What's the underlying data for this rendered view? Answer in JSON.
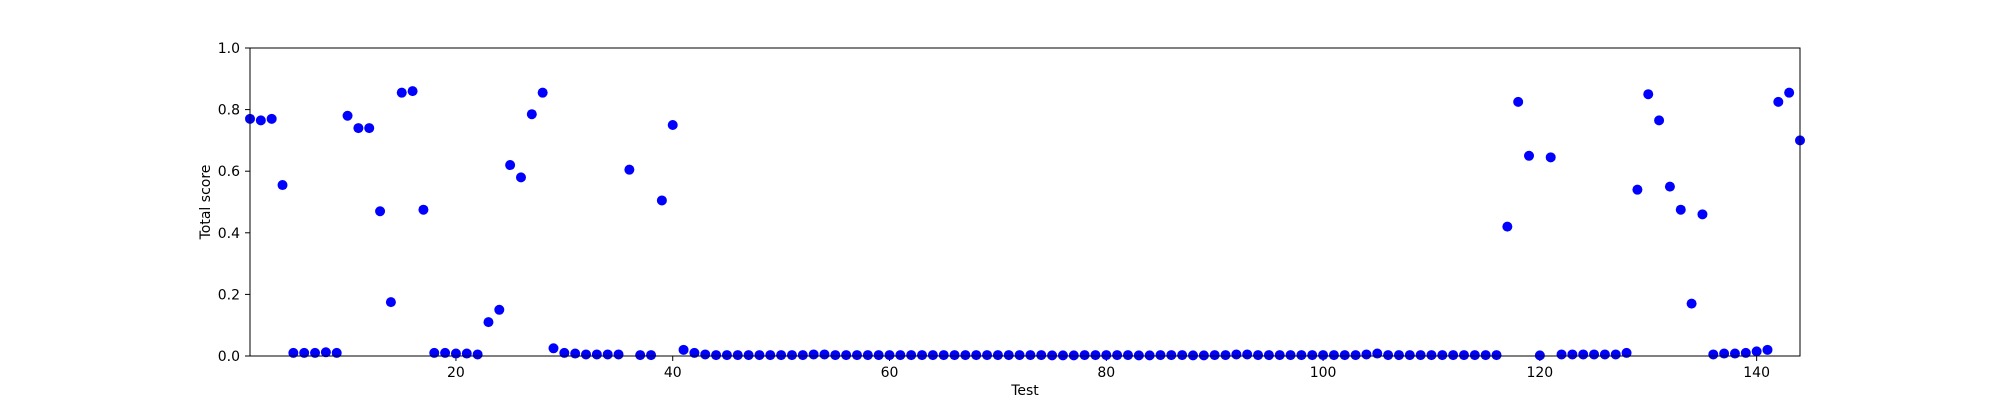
{
  "chart_data": {
    "type": "scatter",
    "title": "",
    "xlabel": "Test",
    "ylabel": "Total score",
    "xlim": [
      1,
      144
    ],
    "ylim": [
      0.0,
      1.0
    ],
    "xticks": [
      20,
      40,
      60,
      80,
      100,
      120,
      140
    ],
    "xtick_labels": [
      "20",
      "40",
      "60",
      "80",
      "100",
      "120",
      "140"
    ],
    "yticks": [
      0.0,
      0.2,
      0.4,
      0.6,
      0.8,
      1.0
    ],
    "ytick_labels": [
      "0.0",
      "0.2",
      "0.4",
      "0.6",
      "0.8",
      "1.0"
    ],
    "grid": false,
    "marker_color": "#0000ff",
    "x": [
      1,
      2,
      3,
      4,
      5,
      6,
      7,
      8,
      9,
      10,
      11,
      12,
      13,
      14,
      15,
      16,
      17,
      18,
      19,
      20,
      21,
      22,
      23,
      24,
      25,
      26,
      27,
      28,
      29,
      30,
      31,
      32,
      33,
      34,
      35,
      36,
      37,
      38,
      39,
      40,
      41,
      42,
      43,
      44,
      45,
      46,
      47,
      48,
      49,
      50,
      51,
      52,
      53,
      54,
      55,
      56,
      57,
      58,
      59,
      60,
      61,
      62,
      63,
      64,
      65,
      66,
      67,
      68,
      69,
      70,
      71,
      72,
      73,
      74,
      75,
      76,
      77,
      78,
      79,
      80,
      81,
      82,
      83,
      84,
      85,
      86,
      87,
      88,
      89,
      90,
      91,
      92,
      93,
      94,
      95,
      96,
      97,
      98,
      99,
      100,
      101,
      102,
      103,
      104,
      105,
      106,
      107,
      108,
      109,
      110,
      111,
      112,
      113,
      114,
      115,
      116,
      117,
      118,
      119,
      120,
      121,
      122,
      123,
      124,
      125,
      126,
      127,
      128,
      129,
      130,
      131,
      132,
      133,
      134,
      135,
      136,
      137,
      138,
      139,
      140,
      141,
      142,
      143,
      144
    ],
    "y": [
      0.77,
      0.765,
      0.77,
      0.555,
      0.01,
      0.01,
      0.01,
      0.012,
      0.01,
      0.78,
      0.74,
      0.74,
      0.47,
      0.175,
      0.855,
      0.86,
      0.475,
      0.01,
      0.01,
      0.008,
      0.008,
      0.005,
      0.11,
      0.15,
      0.62,
      0.58,
      0.785,
      0.855,
      0.025,
      0.01,
      0.008,
      0.005,
      0.005,
      0.005,
      0.005,
      0.605,
      0.003,
      0.003,
      0.505,
      0.75,
      0.02,
      0.01,
      0.005,
      0.003,
      0.003,
      0.003,
      0.003,
      0.003,
      0.003,
      0.003,
      0.003,
      0.003,
      0.005,
      0.005,
      0.003,
      0.003,
      0.003,
      0.003,
      0.003,
      0.003,
      0.003,
      0.003,
      0.003,
      0.003,
      0.003,
      0.003,
      0.003,
      0.003,
      0.003,
      0.003,
      0.003,
      0.003,
      0.003,
      0.003,
      0.002,
      0.002,
      0.002,
      0.003,
      0.003,
      0.003,
      0.003,
      0.003,
      0.002,
      0.002,
      0.003,
      0.003,
      0.003,
      0.002,
      0.002,
      0.003,
      0.003,
      0.005,
      0.005,
      0.003,
      0.003,
      0.003,
      0.003,
      0.003,
      0.003,
      0.003,
      0.003,
      0.003,
      0.003,
      0.005,
      0.008,
      0.003,
      0.003,
      0.003,
      0.003,
      0.003,
      0.003,
      0.003,
      0.003,
      0.003,
      0.003,
      0.003,
      0.42,
      0.825,
      0.65,
      0.002,
      0.645,
      0.005,
      0.005,
      0.005,
      0.005,
      0.005,
      0.005,
      0.01,
      0.54,
      0.85,
      0.765,
      0.55,
      0.475,
      0.17,
      0.46,
      0.005,
      0.008,
      0.008,
      0.01,
      0.015,
      0.02,
      0.825,
      0.855,
      0.7
    ]
  }
}
